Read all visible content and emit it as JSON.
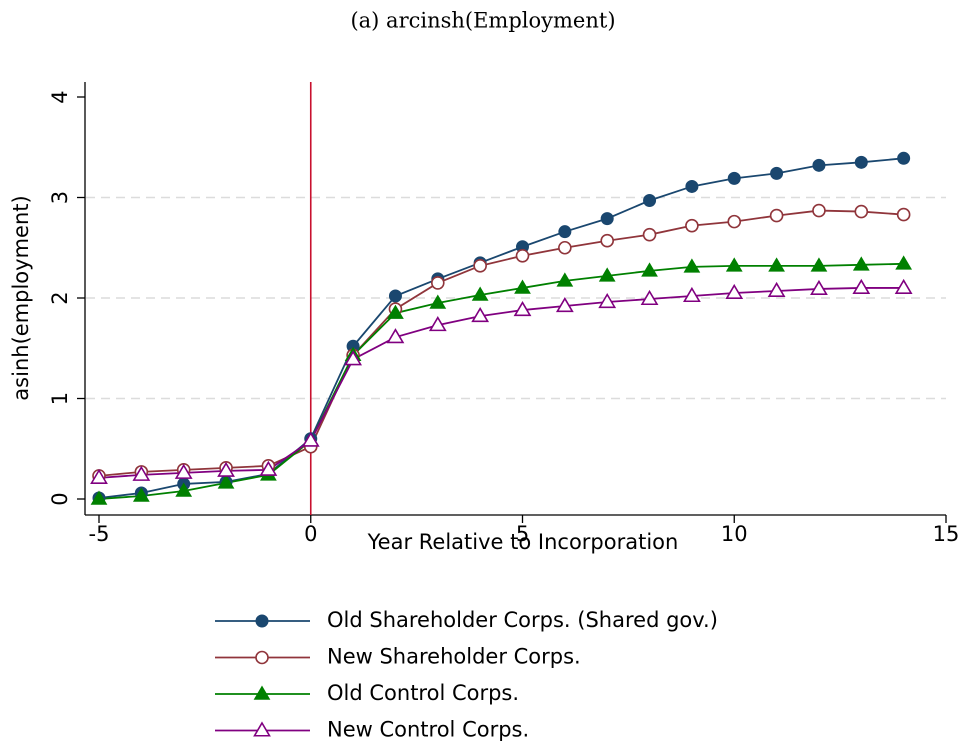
{
  "chart_data": {
    "type": "line",
    "title": "(a) arcinsh(Employment)",
    "x_label": "Year Relative to Incorporation",
    "y_label": "asinh(employment)",
    "x": [
      -5,
      -4,
      -3,
      -2,
      -1,
      0,
      1,
      2,
      3,
      4,
      5,
      6,
      7,
      8,
      9,
      10,
      11,
      12,
      13,
      14
    ],
    "series": [
      {
        "name": "Old Shareholder Corps. (Shared gov.)",
        "color": "#1a476f",
        "marker": "circle",
        "values": [
          0.01,
          0.06,
          0.15,
          0.17,
          0.25,
          0.6,
          1.52,
          2.02,
          2.19,
          2.35,
          2.51,
          2.66,
          2.79,
          2.97,
          3.11,
          3.19,
          3.24,
          3.32,
          3.35,
          3.39
        ]
      },
      {
        "name": "New Shareholder Corps.",
        "color": "#90353b",
        "marker": "circle-hollow",
        "values": [
          0.23,
          0.27,
          0.29,
          0.31,
          0.33,
          0.52,
          1.43,
          1.89,
          2.15,
          2.32,
          2.42,
          2.5,
          2.57,
          2.63,
          2.72,
          2.76,
          2.82,
          2.87,
          2.86,
          2.83
        ]
      },
      {
        "name": "Old Control Corps.",
        "color": "#008000",
        "marker": "triangle",
        "values": [
          0.0,
          0.03,
          0.08,
          0.16,
          0.24,
          0.58,
          1.43,
          1.85,
          1.95,
          2.03,
          2.1,
          2.17,
          2.22,
          2.27,
          2.31,
          2.32,
          2.32,
          2.32,
          2.33,
          2.34
        ]
      },
      {
        "name": "New Control Corps.",
        "color": "#800080",
        "marker": "triangle-hollow",
        "values": [
          0.21,
          0.24,
          0.26,
          0.28,
          0.29,
          0.58,
          1.39,
          1.61,
          1.73,
          1.82,
          1.88,
          1.92,
          1.96,
          1.99,
          2.02,
          2.05,
          2.07,
          2.09,
          2.1,
          2.1
        ]
      }
    ],
    "xlim": [
      -5,
      15
    ],
    "xticks": [
      -5,
      0,
      5,
      10,
      15
    ],
    "ylim": [
      0,
      4
    ],
    "yticks": [
      0,
      1,
      2,
      3,
      4
    ],
    "grid": true,
    "vline": 0,
    "vline_color": "#c8102e",
    "legend": "bottom"
  }
}
